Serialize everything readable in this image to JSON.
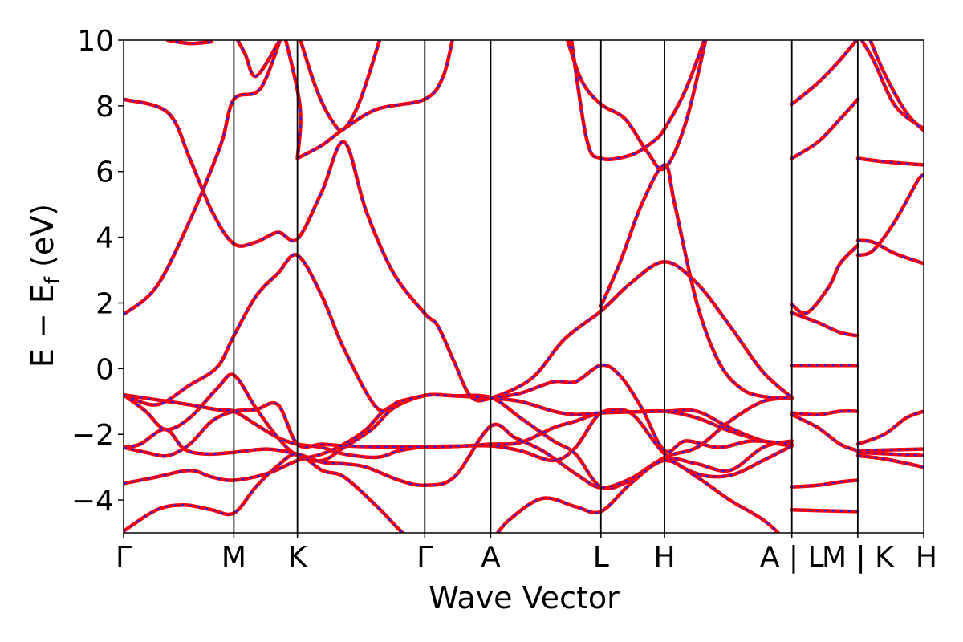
{
  "chart_data": {
    "type": "line",
    "title": "",
    "xlabel": "Wave Vector",
    "ylabel": "E − E",
    "ylabel_sub": "f",
    "ylabel_unit": " (eV)",
    "ylim": [
      -5,
      10
    ],
    "yticks": [
      {
        "value": 10,
        "label": "10"
      },
      {
        "value": 8,
        "label": "8"
      },
      {
        "value": 6,
        "label": "6"
      },
      {
        "value": 4,
        "label": "4"
      },
      {
        "value": 2,
        "label": "2"
      },
      {
        "value": 0,
        "label": "0"
      },
      {
        "value": -2,
        "label": "−2"
      },
      {
        "value": -4,
        "label": "−4"
      }
    ],
    "k_points": [
      {
        "x": 0.0,
        "label": "Γ"
      },
      {
        "x": 1.0,
        "label": "M"
      },
      {
        "x": 1.577,
        "label": "K"
      },
      {
        "x": 2.732,
        "label": "Γ"
      },
      {
        "x": 3.33,
        "label": "A"
      },
      {
        "x": 4.33,
        "label": "L"
      },
      {
        "x": 4.907,
        "label": "H"
      },
      {
        "x": 6.062,
        "label": "A | L"
      },
      {
        "x": 6.66,
        "label": "M | K"
      },
      {
        "x": 7.258,
        "label": "H"
      }
    ],
    "xlim": [
      0,
      7.258
    ],
    "series_colors": {
      "primary": "#ff0000",
      "dashed": "#1f1fff"
    },
    "bands": [
      [
        [
          0,
          -0.8
        ],
        [
          0.3,
          -0.95
        ],
        [
          0.6,
          -1.1
        ],
        [
          0.85,
          -1.25
        ],
        [
          1.0,
          -1.3
        ],
        [
          1.2,
          -1.7
        ],
        [
          1.4,
          -2.1
        ],
        [
          1.577,
          -2.3
        ],
        [
          1.8,
          -2.4
        ],
        [
          2.0,
          -2.6
        ],
        [
          2.3,
          -2.7
        ],
        [
          2.5,
          -2.5
        ],
        [
          2.732,
          -2.38
        ],
        [
          3.0,
          -2.36
        ],
        [
          3.33,
          -2.35
        ],
        [
          3.6,
          -2.5
        ],
        [
          3.9,
          -2.8
        ],
        [
          4.1,
          -2.4
        ],
        [
          4.33,
          -1.35
        ],
        [
          4.6,
          -1.32
        ],
        [
          4.907,
          -1.3
        ],
        [
          5.2,
          -1.5
        ],
        [
          5.5,
          -1.9
        ],
        [
          5.8,
          -2.2
        ],
        [
          6.062,
          -2.35
        ]
      ],
      [
        [
          0,
          -0.8
        ],
        [
          0.2,
          -1.3
        ],
        [
          0.38,
          -1.85
        ],
        [
          0.6,
          -1.5
        ],
        [
          0.85,
          -0.6
        ],
        [
          1.0,
          -0.2
        ],
        [
          1.2,
          -1.2
        ],
        [
          1.4,
          -2.1
        ],
        [
          1.577,
          -2.65
        ],
        [
          1.8,
          -2.8
        ],
        [
          2.0,
          -2.4
        ],
        [
          2.25,
          -1.85
        ],
        [
          2.45,
          -1.2
        ],
        [
          2.732,
          -0.82
        ],
        [
          3.0,
          -0.83
        ],
        [
          3.33,
          -0.88
        ],
        [
          3.6,
          -1.5
        ],
        [
          3.9,
          -2.2
        ],
        [
          4.1,
          -2.6
        ],
        [
          4.33,
          -3.6
        ],
        [
          4.6,
          -3.4
        ],
        [
          4.907,
          -2.7
        ],
        [
          5.2,
          -2.4
        ],
        [
          5.5,
          -1.6
        ],
        [
          5.8,
          -1.0
        ],
        [
          6.062,
          -0.9
        ]
      ],
      [
        [
          0,
          -2.4
        ],
        [
          0.15,
          -2.3
        ],
        [
          0.38,
          -1.85
        ],
        [
          0.55,
          -2.45
        ],
        [
          0.75,
          -2.6
        ],
        [
          1.0,
          -2.55
        ],
        [
          1.3,
          -2.45
        ],
        [
          1.577,
          -2.6
        ],
        [
          1.8,
          -2.85
        ],
        [
          2.0,
          -2.9
        ],
        [
          2.2,
          -3.0
        ],
        [
          2.5,
          -3.4
        ],
        [
          2.732,
          -3.55
        ],
        [
          3.0,
          -3.3
        ],
        [
          3.33,
          -1.75
        ],
        [
          3.55,
          -2.1
        ],
        [
          3.8,
          -2.5
        ],
        [
          4.1,
          -3.2
        ],
        [
          4.33,
          -3.62
        ],
        [
          4.6,
          -3.35
        ],
        [
          4.907,
          -2.75
        ],
        [
          5.2,
          -2.9
        ],
        [
          5.5,
          -3.1
        ],
        [
          5.8,
          -2.4
        ],
        [
          6.062,
          -2.2
        ]
      ],
      [
        [
          0,
          -2.4
        ],
        [
          0.2,
          -2.55
        ],
        [
          0.4,
          -2.65
        ],
        [
          0.6,
          -2.3
        ],
        [
          0.8,
          -1.6
        ],
        [
          1.0,
          -1.3
        ],
        [
          1.2,
          -1.25
        ],
        [
          1.4,
          -1.1
        ],
        [
          1.577,
          -2.3
        ],
        [
          1.8,
          -2.3
        ],
        [
          2.0,
          -2.35
        ],
        [
          2.3,
          -2.38
        ],
        [
          2.732,
          -2.38
        ],
        [
          3.0,
          -2.37
        ],
        [
          3.33,
          -2.3
        ],
        [
          3.6,
          -2.25
        ],
        [
          3.9,
          -1.8
        ],
        [
          4.1,
          -1.6
        ],
        [
          4.33,
          -1.35
        ],
        [
          4.6,
          -1.35
        ],
        [
          4.907,
          -2.6
        ],
        [
          5.2,
          -3.2
        ],
        [
          5.5,
          -3.25
        ],
        [
          5.8,
          -2.8
        ],
        [
          6.062,
          -2.35
        ]
      ],
      [
        [
          0,
          -3.5
        ],
        [
          0.3,
          -3.3
        ],
        [
          0.6,
          -3.1
        ],
        [
          0.8,
          -3.3
        ],
        [
          1.0,
          -3.4
        ],
        [
          1.3,
          -3.2
        ],
        [
          1.577,
          -2.8
        ],
        [
          1.8,
          -2.6
        ],
        [
          2.0,
          -2.3
        ],
        [
          2.2,
          -1.85
        ],
        [
          2.4,
          -1.2
        ],
        [
          2.732,
          -0.82
        ],
        [
          3.0,
          -0.83
        ],
        [
          3.33,
          -0.9
        ],
        [
          3.6,
          -1.0
        ],
        [
          3.9,
          -1.3
        ],
        [
          4.1,
          -1.4
        ],
        [
          4.33,
          -1.35
        ],
        [
          4.6,
          -1.32
        ],
        [
          4.907,
          -1.3
        ],
        [
          5.2,
          -1.3
        ],
        [
          5.5,
          -1.8
        ],
        [
          5.8,
          -2.2
        ],
        [
          6.062,
          -2.35
        ]
      ],
      [
        [
          0,
          -4.95
        ],
        [
          0.3,
          -4.3
        ],
        [
          0.55,
          -4.15
        ],
        [
          0.8,
          -4.3
        ],
        [
          1.0,
          -4.4
        ],
        [
          1.2,
          -3.6
        ],
        [
          1.4,
          -2.95
        ],
        [
          1.577,
          -2.6
        ],
        [
          1.8,
          -3.1
        ],
        [
          2.0,
          -3.3
        ],
        [
          2.3,
          -4.2
        ],
        [
          2.5,
          -4.9
        ],
        [
          2.6,
          -5.2
        ]
      ],
      [
        [
          3.35,
          -5.2
        ],
        [
          3.5,
          -4.6
        ],
        [
          3.8,
          -3.95
        ],
        [
          4.1,
          -4.2
        ],
        [
          4.33,
          -4.35
        ],
        [
          4.6,
          -3.5
        ],
        [
          4.907,
          -2.8
        ],
        [
          5.2,
          -3.3
        ],
        [
          5.5,
          -4.0
        ],
        [
          5.8,
          -4.6
        ],
        [
          6.0,
          -5.2
        ]
      ],
      [
        [
          0,
          1.65
        ],
        [
          0.3,
          2.5
        ],
        [
          0.6,
          4.5
        ],
        [
          0.8,
          6.1
        ],
        [
          0.9,
          7.0
        ],
        [
          1.0,
          8.2
        ],
        [
          1.2,
          8.4
        ],
        [
          1.3,
          8.9
        ],
        [
          1.45,
          10.3
        ]
      ],
      [
        [
          0,
          8.2
        ],
        [
          0.4,
          7.8
        ],
        [
          0.6,
          6.4
        ],
        [
          0.8,
          4.8
        ],
        [
          1.0,
          3.8
        ],
        [
          1.2,
          3.85
        ],
        [
          1.4,
          4.15
        ],
        [
          1.577,
          3.95
        ],
        [
          1.8,
          5.4
        ],
        [
          2.0,
          6.9
        ],
        [
          2.2,
          4.8
        ],
        [
          2.45,
          2.9
        ],
        [
          2.732,
          1.68
        ],
        [
          2.85,
          1.3
        ],
        [
          3.0,
          0.2
        ],
        [
          3.15,
          -0.85
        ],
        [
          3.33,
          -0.9
        ],
        [
          3.7,
          -0.3
        ],
        [
          4.0,
          0.9
        ],
        [
          4.33,
          1.75
        ],
        [
          4.6,
          2.6
        ],
        [
          4.907,
          3.25
        ],
        [
          5.2,
          2.6
        ],
        [
          5.5,
          1.3
        ],
        [
          5.8,
          -0.1
        ],
        [
          6.062,
          -0.88
        ]
      ],
      [
        [
          0,
          -0.8
        ],
        [
          0.3,
          -1.1
        ],
        [
          0.6,
          -0.5
        ],
        [
          0.85,
          0.05
        ],
        [
          1.0,
          1.0
        ],
        [
          1.2,
          2.2
        ],
        [
          1.4,
          2.9
        ],
        [
          1.577,
          3.45
        ],
        [
          1.8,
          2.2
        ],
        [
          2.0,
          0.6
        ],
        [
          2.3,
          -1.2
        ],
        [
          2.5,
          -1.0
        ],
        [
          2.732,
          -0.82
        ]
      ],
      [
        [
          3.33,
          -0.9
        ],
        [
          3.6,
          -0.75
        ],
        [
          3.9,
          -0.4
        ],
        [
          4.1,
          -0.4
        ],
        [
          4.33,
          0.1
        ],
        [
          4.5,
          -0.2
        ],
        [
          4.7,
          -1.2
        ],
        [
          4.907,
          -2.5
        ],
        [
          5.1,
          -2.2
        ],
        [
          5.4,
          -2.4
        ],
        [
          5.7,
          -2.2
        ],
        [
          6.062,
          -2.3
        ]
      ],
      [
        [
          0.4,
          10.0
        ],
        [
          0.6,
          9.9
        ],
        [
          0.8,
          9.95
        ]
      ],
      [
        [
          1.0,
          10.2
        ],
        [
          1.1,
          9.6
        ],
        [
          1.2,
          8.9
        ],
        [
          1.4,
          9.9
        ],
        [
          1.45,
          10.2
        ]
      ],
      [
        [
          1.577,
          6.4
        ],
        [
          1.8,
          6.8
        ],
        [
          2.0,
          7.3
        ],
        [
          2.3,
          7.9
        ],
        [
          2.732,
          8.2
        ],
        [
          2.9,
          8.9
        ],
        [
          3.0,
          10.3
        ]
      ],
      [
        [
          1.577,
          10.3
        ],
        [
          1.75,
          8.5
        ],
        [
          1.9,
          7.5
        ],
        [
          2.0,
          7.3
        ],
        [
          2.15,
          8.2
        ],
        [
          2.35,
          10.3
        ]
      ],
      [
        [
          1.45,
          10.3
        ],
        [
          1.6,
          8.0
        ],
        [
          1.577,
          6.4
        ]
      ],
      [
        [
          4.0,
          10.3
        ],
        [
          4.15,
          8.8
        ],
        [
          4.33,
          8.05
        ],
        [
          4.55,
          7.6
        ],
        [
          4.75,
          6.6
        ],
        [
          4.907,
          6.1
        ],
        [
          5.1,
          7.5
        ],
        [
          5.3,
          10.3
        ]
      ],
      [
        [
          4.05,
          10.3
        ],
        [
          4.2,
          7.0
        ],
        [
          4.33,
          6.4
        ],
        [
          4.6,
          6.5
        ],
        [
          4.8,
          6.9
        ],
        [
          4.907,
          7.3
        ],
        [
          5.1,
          8.5
        ],
        [
          5.3,
          10.3
        ]
      ],
      [
        [
          4.33,
          1.9
        ],
        [
          4.5,
          3.2
        ],
        [
          4.7,
          5.0
        ],
        [
          4.907,
          6.2
        ],
        [
          5.0,
          5.0
        ],
        [
          5.2,
          2.0
        ],
        [
          5.4,
          0.2
        ],
        [
          5.6,
          -0.6
        ],
        [
          5.8,
          -0.85
        ],
        [
          6.062,
          -0.9
        ]
      ],
      [
        [
          6.062,
          1.95
        ],
        [
          6.2,
          1.7
        ],
        [
          6.4,
          2.5
        ],
        [
          6.5,
          3.2
        ],
        [
          6.66,
          3.75
        ]
      ],
      [
        [
          6.062,
          1.7
        ],
        [
          6.3,
          1.4
        ],
        [
          6.5,
          1.1
        ],
        [
          6.66,
          1.0
        ]
      ],
      [
        [
          6.062,
          6.4
        ],
        [
          6.3,
          6.9
        ],
        [
          6.5,
          7.6
        ],
        [
          6.66,
          8.2
        ]
      ],
      [
        [
          6.062,
          8.05
        ],
        [
          6.3,
          8.7
        ],
        [
          6.5,
          9.4
        ],
        [
          6.66,
          10.05
        ]
      ],
      [
        [
          6.062,
          0.1
        ],
        [
          6.66,
          0.1
        ]
      ],
      [
        [
          6.062,
          -1.35
        ],
        [
          6.3,
          -1.4
        ],
        [
          6.5,
          -1.3
        ],
        [
          6.66,
          -1.3
        ]
      ],
      [
        [
          6.062,
          -1.4
        ],
        [
          6.3,
          -1.8
        ],
        [
          6.5,
          -2.3
        ],
        [
          6.66,
          -2.5
        ]
      ],
      [
        [
          6.062,
          -3.6
        ],
        [
          6.3,
          -3.55
        ],
        [
          6.5,
          -3.45
        ],
        [
          6.66,
          -3.4
        ]
      ],
      [
        [
          6.062,
          -4.3
        ],
        [
          6.3,
          -4.32
        ],
        [
          6.66,
          -4.35
        ]
      ],
      [
        [
          6.66,
          6.4
        ],
        [
          6.9,
          6.3
        ],
        [
          7.258,
          6.2
        ]
      ],
      [
        [
          6.66,
          3.45
        ],
        [
          6.8,
          3.6
        ],
        [
          7.0,
          4.5
        ],
        [
          7.2,
          5.7
        ],
        [
          7.258,
          5.9
        ]
      ],
      [
        [
          6.66,
          3.9
        ],
        [
          6.8,
          3.85
        ],
        [
          7.0,
          3.5
        ],
        [
          7.258,
          3.2
        ]
      ],
      [
        [
          6.66,
          10.2
        ],
        [
          6.8,
          9.4
        ],
        [
          7.0,
          8.0
        ],
        [
          7.258,
          7.3
        ]
      ],
      [
        [
          6.75,
          10.2
        ],
        [
          6.9,
          9.0
        ],
        [
          7.1,
          7.8
        ],
        [
          7.258,
          7.25
        ]
      ],
      [
        [
          6.66,
          -2.3
        ],
        [
          6.9,
          -2.0
        ],
        [
          7.1,
          -1.5
        ],
        [
          7.258,
          -1.3
        ]
      ],
      [
        [
          6.66,
          -2.5
        ],
        [
          7.258,
          -2.45
        ]
      ],
      [
        [
          6.66,
          -2.55
        ],
        [
          7.258,
          -2.65
        ]
      ],
      [
        [
          6.66,
          -2.65
        ],
        [
          6.9,
          -2.75
        ],
        [
          7.258,
          -3.0
        ]
      ]
    ]
  }
}
